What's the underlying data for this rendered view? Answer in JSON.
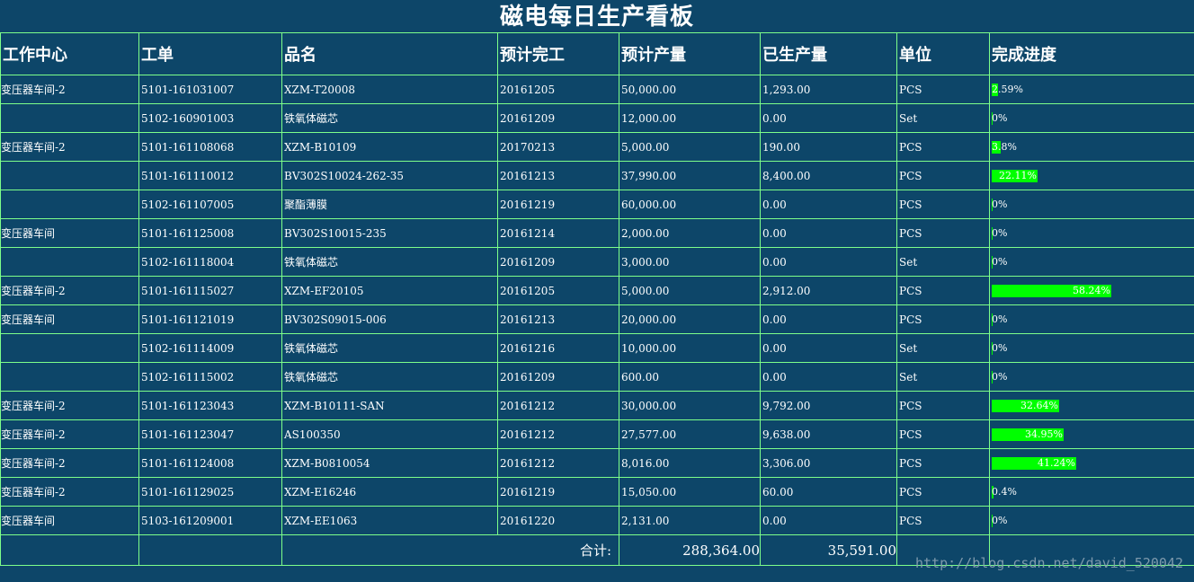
{
  "title": "磁电每日生产看板",
  "headers": [
    "工作中心",
    "工单",
    "品名",
    "预计完工",
    "预计产量",
    "已生产量",
    "单位",
    "完成进度"
  ],
  "rows": [
    {
      "wc": "变压器车间-2",
      "wo": "5101-161031007",
      "name": "XZM-T20008",
      "date": "20161205",
      "plan": "50,000.00",
      "done": "1,293.00",
      "unit": "PCS",
      "progress": "2.59%",
      "pct": 2.59
    },
    {
      "wc": "",
      "wo": "5102-160901003",
      "name": "铁氧体磁芯",
      "date": "20161209",
      "plan": "12,000.00",
      "done": "0.00",
      "unit": "Set",
      "progress": "0%",
      "pct": 0
    },
    {
      "wc": "变压器车间-2",
      "wo": "5101-161108068",
      "name": "XZM-B10109",
      "date": "20170213",
      "plan": "5,000.00",
      "done": "190.00",
      "unit": "PCS",
      "progress": "3.8%",
      "pct": 3.8
    },
    {
      "wc": "",
      "wo": "5101-161110012",
      "name": "BV302S10024-262-35",
      "date": "20161213",
      "plan": "37,990.00",
      "done": "8,400.00",
      "unit": "PCS",
      "progress": "22.11%",
      "pct": 22.11
    },
    {
      "wc": "",
      "wo": "5102-161107005",
      "name": "聚酯薄膜",
      "date": "20161219",
      "plan": "60,000.00",
      "done": "0.00",
      "unit": "PCS",
      "progress": "0%",
      "pct": 0
    },
    {
      "wc": "变压器车间",
      "wo": "5101-161125008",
      "name": "BV302S10015-235",
      "date": "20161214",
      "plan": "2,000.00",
      "done": "0.00",
      "unit": "PCS",
      "progress": "0%",
      "pct": 0
    },
    {
      "wc": "",
      "wo": "5102-161118004",
      "name": "铁氧体磁芯",
      "date": "20161209",
      "plan": "3,000.00",
      "done": "0.00",
      "unit": "Set",
      "progress": "0%",
      "pct": 0
    },
    {
      "wc": "变压器车间-2",
      "wo": "5101-161115027",
      "name": "XZM-EF20105",
      "date": "20161205",
      "plan": "5,000.00",
      "done": "2,912.00",
      "unit": "PCS",
      "progress": "58.24%",
      "pct": 58.24
    },
    {
      "wc": "变压器车间",
      "wo": "5101-161121019",
      "name": "BV302S09015-006",
      "date": "20161213",
      "plan": "20,000.00",
      "done": "0.00",
      "unit": "PCS",
      "progress": "0%",
      "pct": 0
    },
    {
      "wc": "",
      "wo": "5102-161114009",
      "name": "铁氧体磁芯",
      "date": "20161216",
      "plan": "10,000.00",
      "done": "0.00",
      "unit": "Set",
      "progress": "0%",
      "pct": 0
    },
    {
      "wc": "",
      "wo": "5102-161115002",
      "name": "铁氧体磁芯",
      "date": "20161209",
      "plan": "600.00",
      "done": "0.00",
      "unit": "Set",
      "progress": "0%",
      "pct": 0
    },
    {
      "wc": "变压器车间-2",
      "wo": "5101-161123043",
      "name": "XZM-B10111-SAN",
      "date": "20161212",
      "plan": "30,000.00",
      "done": "9,792.00",
      "unit": "PCS",
      "progress": "32.64%",
      "pct": 32.64
    },
    {
      "wc": "变压器车间-2",
      "wo": "5101-161123047",
      "name": "AS100350",
      "date": "20161212",
      "plan": "27,577.00",
      "done": "9,638.00",
      "unit": "PCS",
      "progress": "34.95%",
      "pct": 34.95
    },
    {
      "wc": "变压器车间-2",
      "wo": "5101-161124008",
      "name": "XZM-B0810054",
      "date": "20161212",
      "plan": "8,016.00",
      "done": "3,306.00",
      "unit": "PCS",
      "progress": "41.24%",
      "pct": 41.24
    },
    {
      "wc": "变压器车间-2",
      "wo": "5101-161129025",
      "name": "XZM-E16246",
      "date": "20161219",
      "plan": "15,050.00",
      "done": "60.00",
      "unit": "PCS",
      "progress": "0.4%",
      "pct": 0.4
    },
    {
      "wc": "变压器车间",
      "wo": "5103-161209001",
      "name": "XZM-EE1063",
      "date": "20161220",
      "plan": "2,131.00",
      "done": "0.00",
      "unit": "PCS",
      "progress": "0%",
      "pct": 0
    }
  ],
  "total": {
    "label": "合计:",
    "plan": "288,364.00",
    "done": "35,591.00"
  },
  "watermark": "http://blog.csdn.net/david_520042",
  "colors": {
    "background": "#0d4669",
    "border": "#7dff8a",
    "progress": "#00ff00"
  }
}
